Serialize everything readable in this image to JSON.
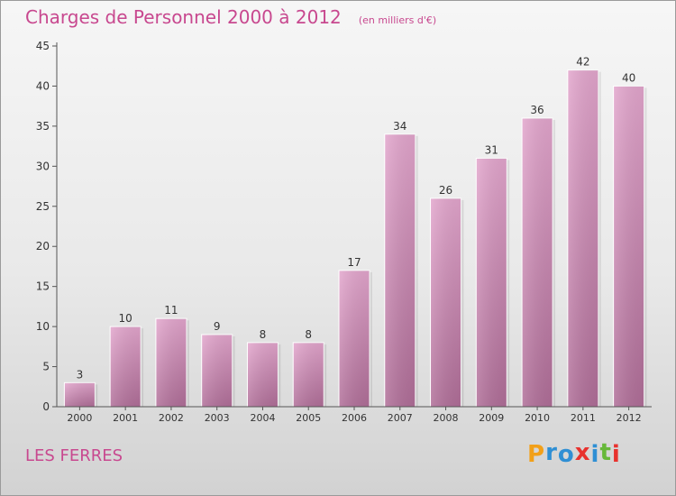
{
  "chart_data": {
    "type": "bar",
    "title": "Charges de Personnel 2000 à 2012",
    "subtitle": "(en milliers d'€)",
    "categories": [
      "2000",
      "2001",
      "2002",
      "2003",
      "2004",
      "2005",
      "2006",
      "2007",
      "2008",
      "2009",
      "2010",
      "2011",
      "2012"
    ],
    "values": [
      3,
      10,
      11,
      9,
      8,
      8,
      17,
      34,
      26,
      31,
      36,
      42,
      40
    ],
    "ylim": [
      0,
      45
    ],
    "yticks": [
      0,
      5,
      10,
      15,
      20,
      25,
      30,
      35,
      40,
      45
    ],
    "grid": false,
    "bar_color": "#d990bd"
  },
  "commune": "LES FERRES",
  "logo": {
    "letters": [
      "P",
      "r",
      "o",
      "x",
      "i",
      "t",
      "i"
    ],
    "colors": [
      "#f2a019",
      "#2f8fd4",
      "#2f8fd4",
      "#e8322e",
      "#2f8fd4",
      "#67b83a",
      "#e8322e"
    ]
  }
}
